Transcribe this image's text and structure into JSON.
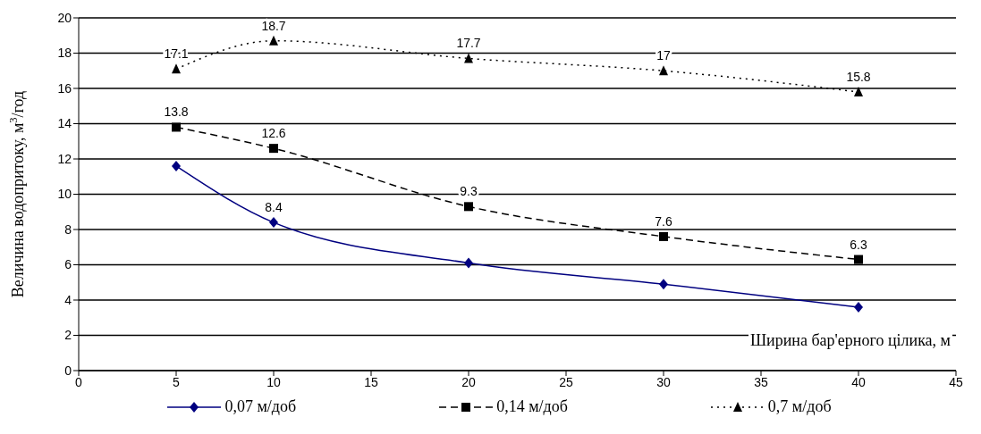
{
  "chart_data": {
    "type": "line",
    "xlabel": "Ширина бар'ерного цілика, м",
    "ylabel": "Величина водопритоку, м$^{3}$/год",
    "x": [
      5,
      10,
      20,
      30,
      40
    ],
    "xlim": [
      0,
      45
    ],
    "xticks": [
      0,
      5,
      10,
      15,
      20,
      25,
      30,
      35,
      40,
      45
    ],
    "ylim": [
      0,
      20
    ],
    "yticks": [
      0,
      2,
      4,
      6,
      8,
      10,
      12,
      14,
      16,
      18,
      20
    ],
    "grid": "y",
    "legend": "bottom",
    "series": [
      {
        "name": "0,07 м/доб",
        "color": "#000080",
        "values": [
          11.6,
          8.4,
          6.1,
          4.9,
          3.6
        ],
        "marker": "diamond",
        "line_style": "solid",
        "value_labels": [
          null,
          "8.4",
          null,
          null,
          null
        ]
      },
      {
        "name": "0,14 м/доб",
        "color": "#000000",
        "values": [
          13.8,
          12.6,
          9.3,
          7.6,
          6.3
        ],
        "marker": "square",
        "line_style": "dashed",
        "value_labels": [
          "13.8",
          "12.6",
          "9.3",
          "7.6",
          "6.3"
        ]
      },
      {
        "name": "0,7 м/доб",
        "color": "#000000",
        "values": [
          17.1,
          18.7,
          17.7,
          17,
          15.8
        ],
        "marker": "triangle",
        "line_style": "dotted",
        "value_labels": [
          "17.1",
          "18.7",
          "17.7",
          "17",
          "15.8"
        ]
      }
    ]
  }
}
